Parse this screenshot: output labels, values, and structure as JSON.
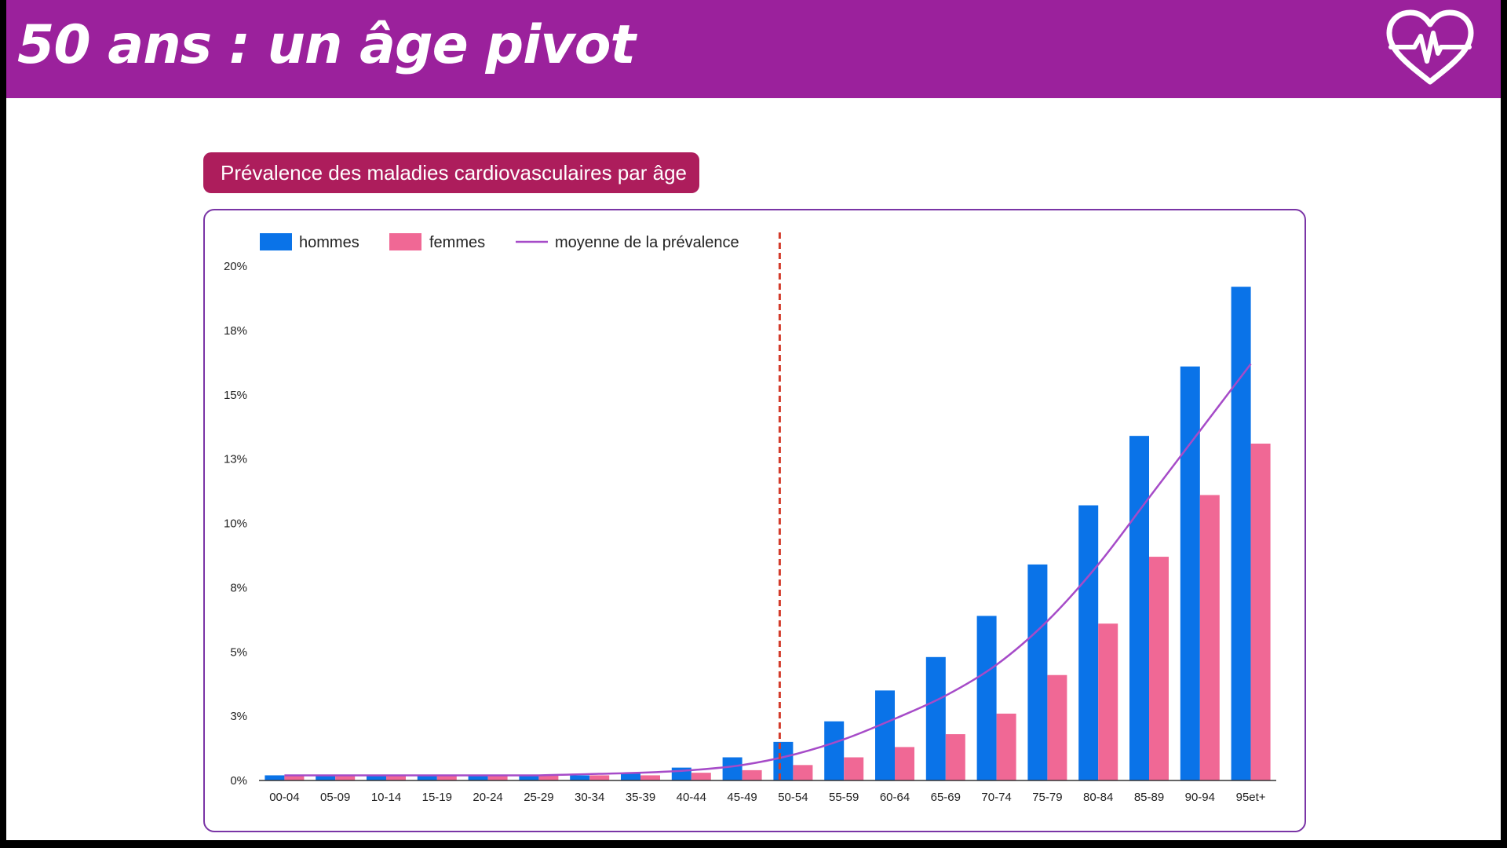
{
  "page": {
    "title": "50 ans : un âge pivot",
    "logo_icon": "heart-pulse-icon"
  },
  "colors": {
    "header_bg": "#9b219c",
    "title_box_bg": "#ad1d5c",
    "hommes": "#0a73e8",
    "femmes": "#f06895",
    "average": "#a64bc8",
    "marker": "#d33b2a",
    "card_border": "#7a35a6"
  },
  "chart_data": {
    "type": "bar",
    "title": "Prévalence des maladies cardiovasculaires par âge",
    "categories": [
      "00-04",
      "05-09",
      "10-14",
      "15-19",
      "20-24",
      "25-29",
      "30-34",
      "35-39",
      "40-44",
      "45-49",
      "50-54",
      "55-59",
      "60-64",
      "65-69",
      "70-74",
      "75-79",
      "80-84",
      "85-89",
      "90-94",
      "95et+"
    ],
    "series": [
      {
        "name": "hommes",
        "type": "bar",
        "values": [
          0.2,
          0.2,
          0.2,
          0.2,
          0.2,
          0.2,
          0.2,
          0.3,
          0.5,
          0.9,
          1.5,
          2.3,
          3.5,
          4.8,
          6.4,
          8.4,
          10.7,
          13.4,
          16.1,
          19.2
        ]
      },
      {
        "name": "femmes",
        "type": "bar",
        "values": [
          0.2,
          0.2,
          0.2,
          0.2,
          0.2,
          0.2,
          0.2,
          0.2,
          0.3,
          0.4,
          0.6,
          0.9,
          1.3,
          1.8,
          2.6,
          4.1,
          6.1,
          8.7,
          11.1,
          13.1
        ]
      },
      {
        "name": "moyenne de la prévalence",
        "type": "line",
        "values": [
          0.2,
          0.2,
          0.2,
          0.2,
          0.2,
          0.2,
          0.25,
          0.3,
          0.4,
          0.6,
          1.0,
          1.6,
          2.4,
          3.3,
          4.5,
          6.2,
          8.4,
          11.0,
          13.6,
          16.2
        ]
      }
    ],
    "y_ticks": [
      "0%",
      "3%",
      "5%",
      "8%",
      "10%",
      "13%",
      "15%",
      "18%",
      "20%"
    ],
    "ylim": [
      0,
      20
    ],
    "vertical_marker_after": "50-54",
    "legend_position": "top-left",
    "grid": false
  }
}
